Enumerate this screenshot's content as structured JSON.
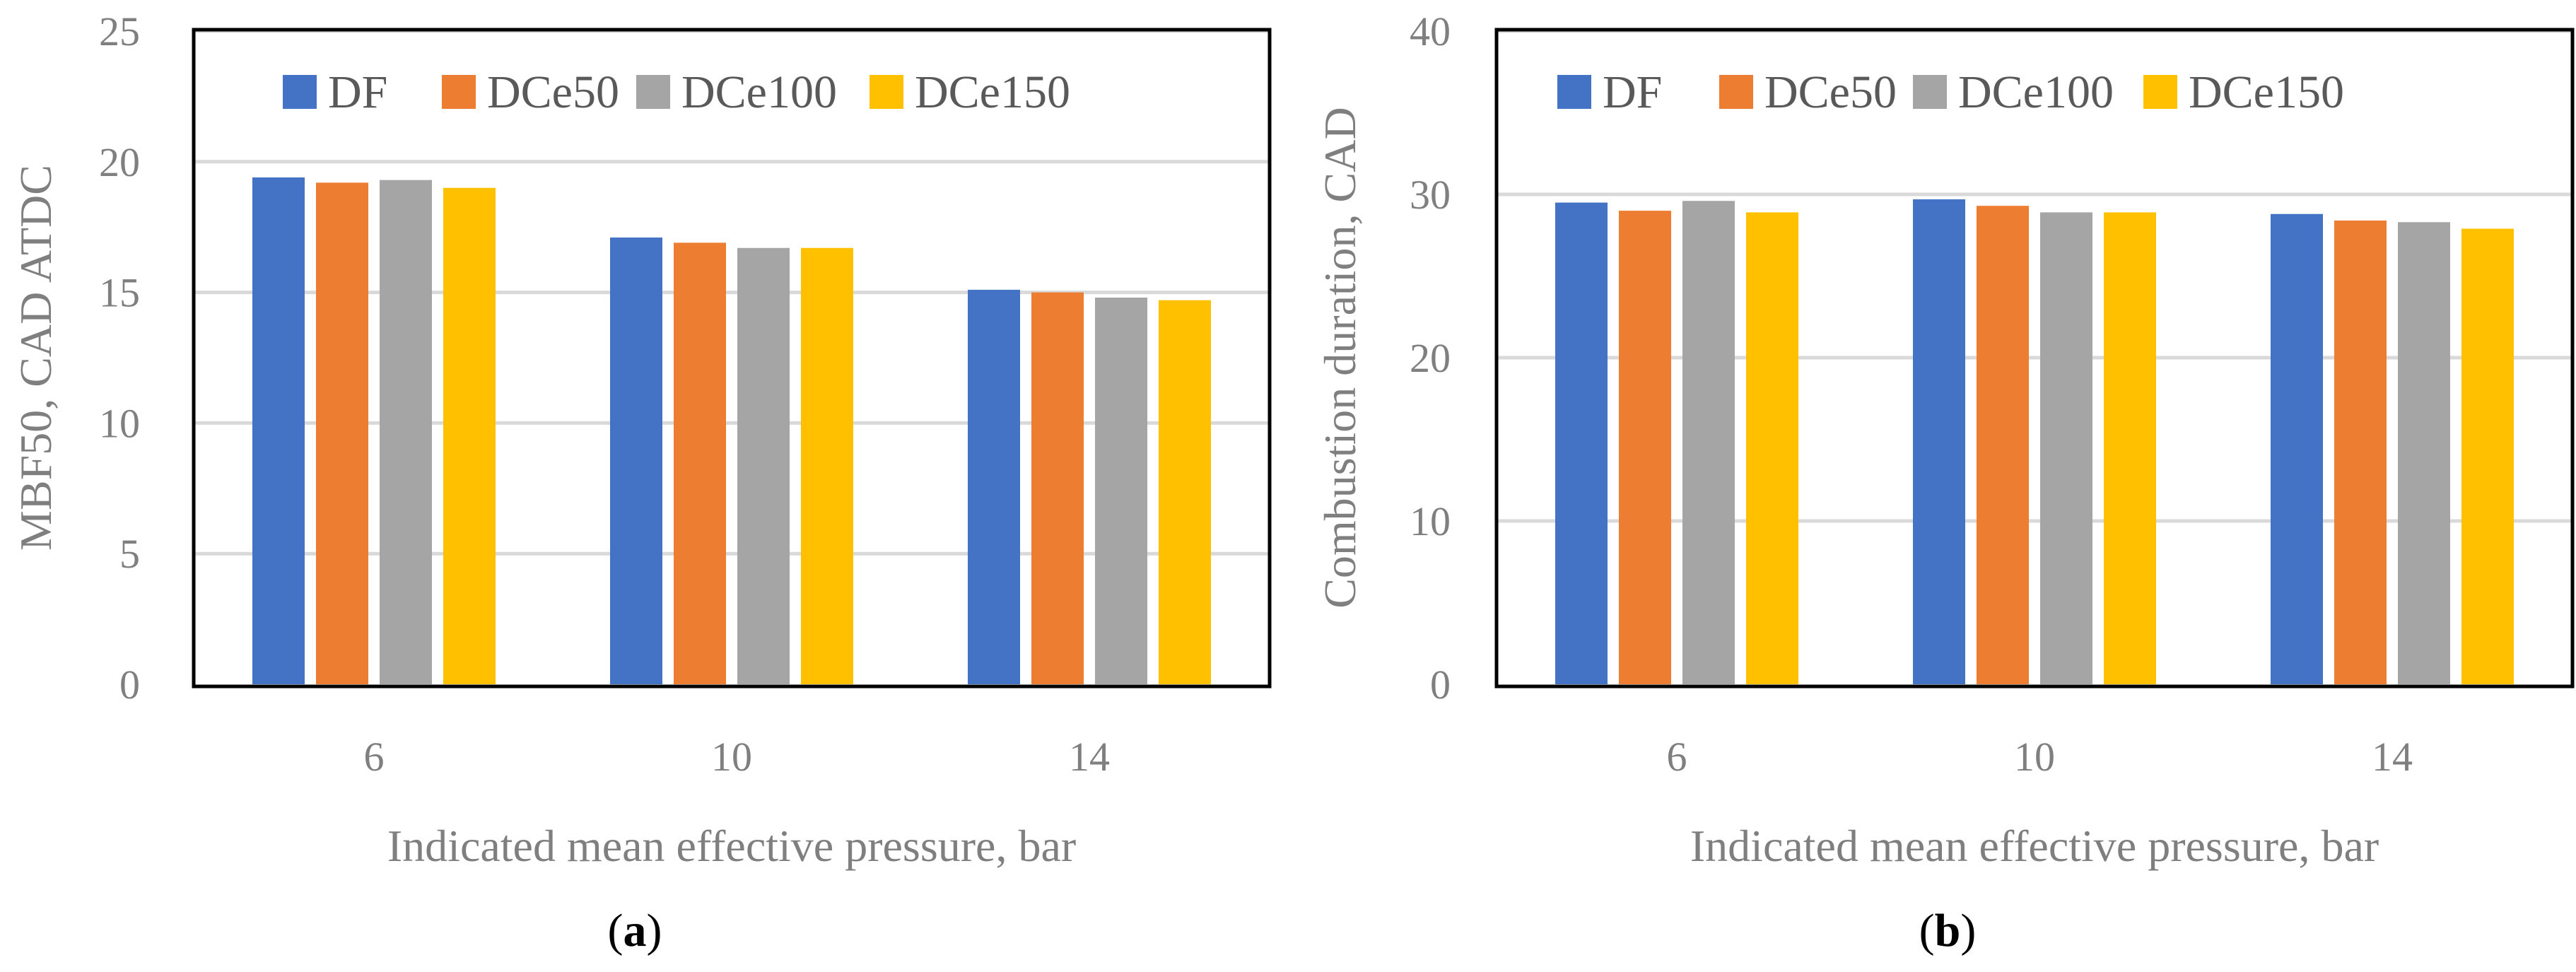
{
  "chart_data": [
    {
      "type": "bar",
      "caption_letter": "a",
      "ylabel": "MBF50, CAD ATDC",
      "xlabel": "Indicated mean effective pressure, bar",
      "categories": [
        "6",
        "10",
        "14"
      ],
      "yticks": [
        "0",
        "5",
        "10",
        "15",
        "20",
        "25"
      ],
      "ylim": [
        0,
        25
      ],
      "grid": true,
      "legend_position": "top",
      "series": [
        {
          "name": "DF",
          "color": "#4472c4",
          "values": [
            19.4,
            17.1,
            15.1
          ]
        },
        {
          "name": "DCe50",
          "color": "#ed7d31",
          "values": [
            19.2,
            16.9,
            15.0
          ]
        },
        {
          "name": "DCe100",
          "color": "#a5a5a5",
          "values": [
            19.3,
            16.7,
            14.8
          ]
        },
        {
          "name": "DCe150",
          "color": "#ffc000",
          "values": [
            19.0,
            16.7,
            14.7
          ]
        }
      ]
    },
    {
      "type": "bar",
      "caption_letter": "b",
      "ylabel": "Combustion duration, CAD",
      "xlabel": "Indicated mean effective pressure, bar",
      "categories": [
        "6",
        "10",
        "14"
      ],
      "yticks": [
        "0",
        "10",
        "20",
        "30",
        "40"
      ],
      "ylim": [
        0,
        40
      ],
      "grid": true,
      "legend_position": "top",
      "series": [
        {
          "name": "DF",
          "color": "#4472c4",
          "values": [
            29.5,
            29.7,
            28.8
          ]
        },
        {
          "name": "DCe50",
          "color": "#ed7d31",
          "values": [
            29.0,
            29.3,
            28.4
          ]
        },
        {
          "name": "DCe100",
          "color": "#a5a5a5",
          "values": [
            29.6,
            28.9,
            28.3
          ]
        },
        {
          "name": "DCe150",
          "color": "#ffc000",
          "values": [
            28.9,
            28.9,
            27.9
          ]
        }
      ]
    }
  ],
  "captions": {
    "a": {
      "open": "(",
      "letter": "a",
      "close": ")"
    },
    "b": {
      "open": "(",
      "letter": "b",
      "close": ")"
    }
  }
}
